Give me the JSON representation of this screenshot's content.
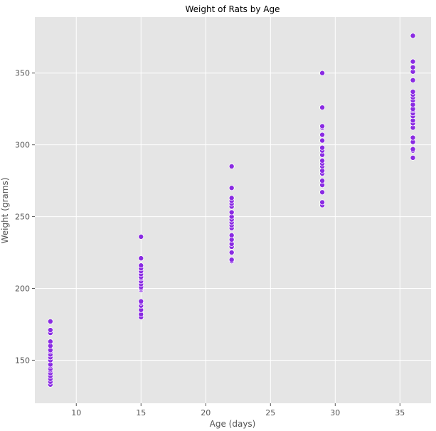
{
  "chart_data": {
    "type": "scatter",
    "title": "Weight of Rats by Age",
    "xlabel": "Age (days)",
    "ylabel": "Weight (grams)",
    "xlim": [
      6.8,
      37.4
    ],
    "ylim": [
      120,
      389
    ],
    "xticks": [
      10,
      15,
      20,
      25,
      30,
      35
    ],
    "yticks": [
      150,
      200,
      250,
      300,
      350
    ],
    "grid": true,
    "legend": "none",
    "colors": {
      "point": "#8a2be2",
      "panel": "#e5e5e5",
      "grid": "#ffffff"
    },
    "series": [
      {
        "x": 8,
        "y": [
          133,
          135,
          137,
          139,
          141,
          143,
          144,
          146,
          147,
          150,
          152,
          154,
          156,
          157,
          160,
          163,
          169,
          171,
          177
        ]
      },
      {
        "x": 15,
        "y": [
          180,
          182,
          185,
          188,
          190,
          191,
          199,
          200,
          201,
          203,
          205,
          207,
          208,
          210,
          212,
          214,
          216,
          221,
          236
        ]
      },
      {
        "x": 22,
        "y": [
          219,
          220,
          225,
          229,
          231,
          234,
          237,
          242,
          244,
          246,
          248,
          250,
          253,
          257,
          259,
          261,
          263,
          270,
          285
        ]
      },
      {
        "x": 29,
        "y": [
          258,
          260,
          267,
          272,
          275,
          280,
          282,
          285,
          287,
          289,
          293,
          296,
          298,
          303,
          307,
          312,
          313,
          326,
          350
        ]
      },
      {
        "x": 36,
        "y": [
          291,
          296,
          297,
          302,
          305,
          312,
          315,
          317,
          320,
          322,
          324,
          325,
          328,
          331,
          333,
          335,
          337,
          345,
          351,
          354,
          358,
          376
        ]
      }
    ]
  }
}
